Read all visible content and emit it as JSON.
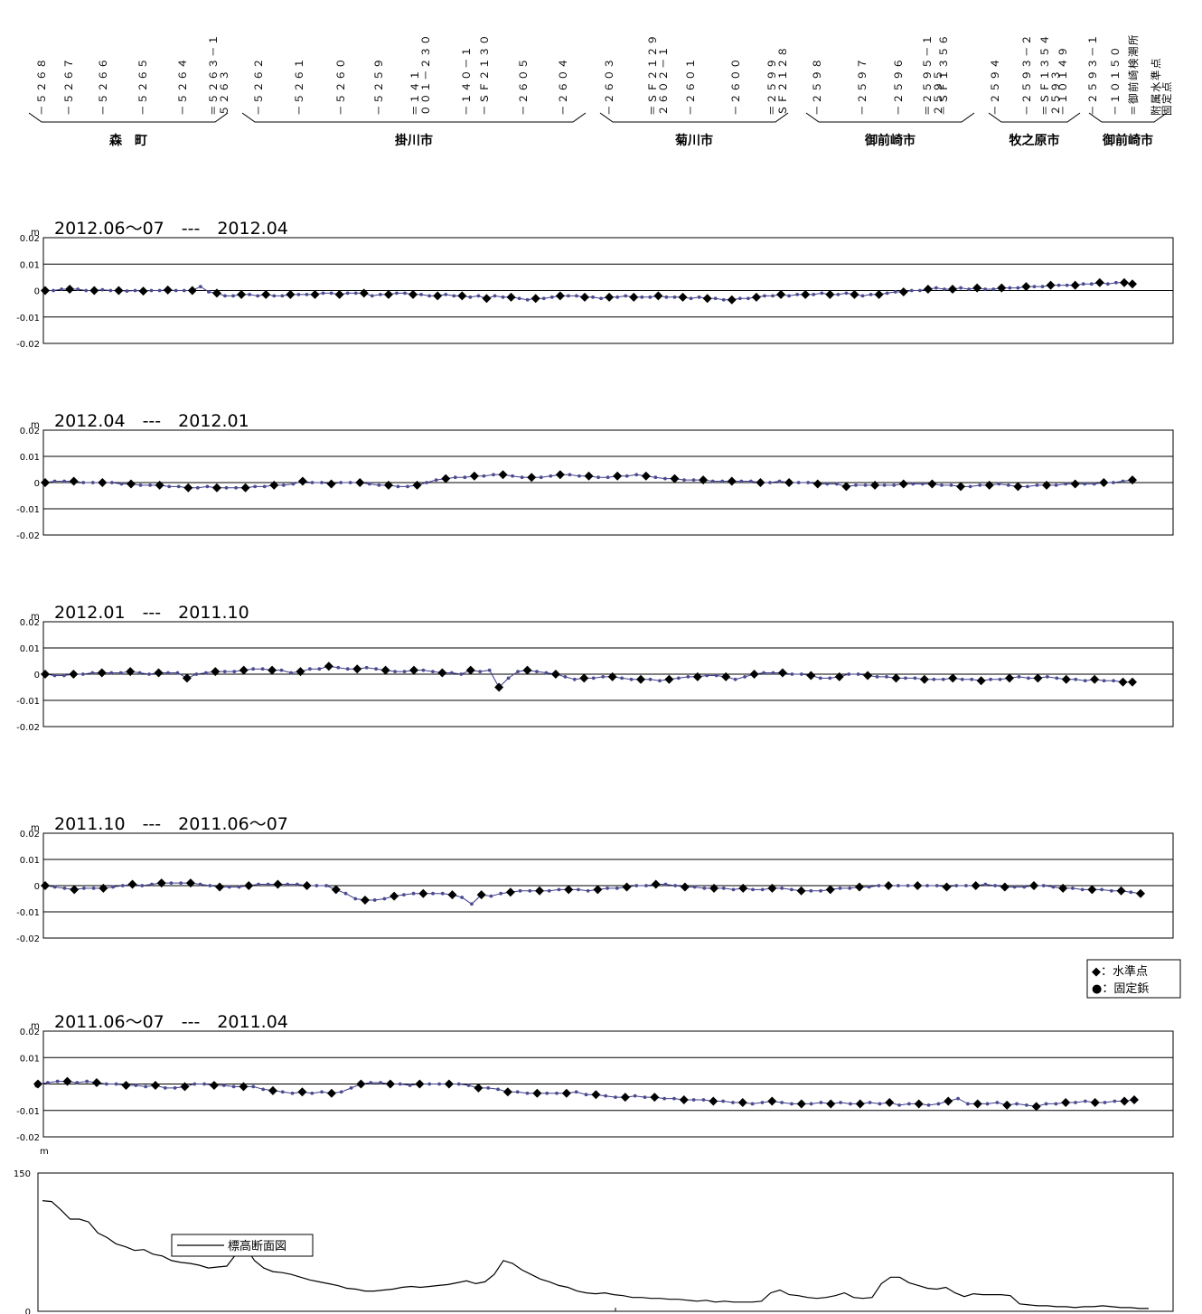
{
  "stations": {
    "labels": [
      [
        "－５２６８"
      ],
      [
        "－５２６７"
      ],
      [
        "－５２６６"
      ],
      [
        "－５２６５"
      ],
      [
        "－５２６４"
      ],
      [
        "＝５２６３－１",
        "５２６３"
      ],
      [
        "－５２６２"
      ],
      [
        "－５２６１"
      ],
      [
        "－５２６０"
      ],
      [
        "－５２５９"
      ],
      [
        "＝１４１",
        "００１－２３０"
      ],
      [
        "－１４０－１"
      ],
      [
        "－ＳＦ２１３０"
      ],
      [
        "－２６０５"
      ],
      [
        "－２６０４"
      ],
      [
        "－２６０３"
      ],
      [
        "＝ＳＦ２１２９",
        "２６０２－１"
      ],
      [
        "－２６０１"
      ],
      [
        "－２６００"
      ],
      [
        "＝２５９９",
        "ＳＦ２１２８"
      ],
      [
        "－２５９８"
      ],
      [
        "－２５９７"
      ],
      [
        "－２５９６"
      ],
      [
        "＝２５９５－１",
        "２５９５"
      ],
      [
        "－ＳＦ１３５６"
      ],
      [
        "－２５９４"
      ],
      [
        "－２５９３－２"
      ],
      [
        "＝ＳＦ１３５４",
        "２５９３"
      ],
      [
        "－１０１４９"
      ],
      [
        "－２５９３－１"
      ],
      [
        "－１０１５０"
      ],
      [
        "＝御前崎検潮所"
      ],
      [
        "附属水準点",
        "固定点"
      ]
    ]
  },
  "municipalities": [
    "森　町",
    "掛川市",
    "菊川市",
    "御前崎市",
    "牧之原市",
    "御前崎市"
  ],
  "unit": "m",
  "legend_diff": {
    "benchmark": "◆：水準点",
    "nail": "●：固定鋲"
  },
  "legend_elev": "標高断面図",
  "chart_data": [
    {
      "type": "line",
      "title": "2012.06～07　---　2012.04",
      "ylim": [
        -0.02,
        0.02
      ],
      "yticks": [
        "0.02",
        "0.01",
        "0",
        "-0.01",
        "-0.02"
      ],
      "series": [
        {
          "values": [
            0,
            0,
            0.0005,
            0.0005,
            0.0005,
            0,
            0,
            0.0003,
            0,
            0,
            -0.0002,
            0,
            -0.0002,
            0,
            0,
            0.0002,
            0,
            0,
            0,
            0.0015,
            -0.0005,
            -0.001,
            -0.002,
            -0.002,
            -0.0015,
            -0.0015,
            -0.002,
            -0.0015,
            -0.002,
            -0.002,
            -0.0015,
            -0.0015,
            -0.0015,
            -0.0015,
            -0.001,
            -0.001,
            -0.0015,
            -0.001,
            -0.001,
            -0.001,
            -0.002,
            -0.0015,
            -0.0015,
            -0.001,
            -0.001,
            -0.0015,
            -0.0015,
            -0.002,
            -0.002,
            -0.0015,
            -0.002,
            -0.002,
            -0.0025,
            -0.002,
            -0.003,
            -0.002,
            -0.0025,
            -0.0025,
            -0.003,
            -0.0035,
            -0.003,
            -0.003,
            -0.0025,
            -0.002,
            -0.002,
            -0.002,
            -0.0025,
            -0.0025,
            -0.003,
            -0.0025,
            -0.0025,
            -0.002,
            -0.0025,
            -0.0025,
            -0.0025,
            -0.002,
            -0.0025,
            -0.0025,
            -0.0025,
            -0.003,
            -0.0025,
            -0.003,
            -0.003,
            -0.0035,
            -0.0035,
            -0.003,
            -0.003,
            -0.0025,
            -0.002,
            -0.002,
            -0.0015,
            -0.002,
            -0.0015,
            -0.0015,
            -0.0015,
            -0.001,
            -0.0015,
            -0.0015,
            -0.001,
            -0.0015,
            -0.002,
            -0.0015,
            -0.0015,
            -0.001,
            -0.0005,
            -0.0005,
            0,
            0,
            0.0005,
            0.001,
            0.0005,
            0.0005,
            0.001,
            0.0005,
            0.001,
            0.0005,
            0.0005,
            0.001,
            0.001,
            0.001,
            0.0015,
            0.0015,
            0.0015,
            0.002,
            0.002,
            0.002,
            0.002,
            0.0025,
            0.0025,
            0.003,
            0.0025,
            0.003,
            0.003,
            0.0025
          ]
        }
      ]
    },
    {
      "type": "line",
      "title": "2012.04　---　2012.01",
      "ylim": [
        -0.02,
        0.02
      ],
      "yticks": [
        "0.02",
        "0.01",
        "0",
        "-0.01",
        "-0.02"
      ],
      "series": [
        {
          "values": [
            0,
            0.0005,
            0.0005,
            0.0005,
            0,
            0,
            0,
            0,
            -0.0005,
            -0.0005,
            -0.001,
            -0.001,
            -0.001,
            -0.0015,
            -0.0015,
            -0.002,
            -0.002,
            -0.0015,
            -0.002,
            -0.002,
            -0.002,
            -0.002,
            -0.0015,
            -0.0015,
            -0.001,
            -0.001,
            -0.0005,
            0.0005,
            0,
            0,
            -0.0005,
            0,
            0,
            0,
            -0.0005,
            -0.001,
            -0.001,
            -0.0015,
            -0.0015,
            -0.001,
            0,
            0.001,
            0.0015,
            0.002,
            0.002,
            0.0025,
            0.0025,
            0.003,
            0.003,
            0.0025,
            0.002,
            0.002,
            0.002,
            0.0025,
            0.003,
            0.003,
            0.0025,
            0.0025,
            0.002,
            0.002,
            0.0025,
            0.0025,
            0.003,
            0.0025,
            0.002,
            0.0015,
            0.0015,
            0.001,
            0.001,
            0.001,
            0.0005,
            0.0005,
            0.0005,
            0.0005,
            0.0005,
            0,
            0,
            0.0005,
            0,
            0,
            0,
            -0.0005,
            -0.0005,
            -0.0005,
            -0.0015,
            -0.001,
            -0.001,
            -0.001,
            -0.001,
            -0.001,
            -0.0005,
            -0.0005,
            -0.0005,
            -0.0005,
            -0.001,
            -0.001,
            -0.0015,
            -0.0015,
            -0.001,
            -0.001,
            -0.0005,
            -0.001,
            -0.0015,
            -0.0015,
            -0.001,
            -0.001,
            -0.001,
            -0.0005,
            -0.0005,
            -0.0005,
            -0.0005,
            0,
            0,
            0.0005,
            0.001
          ]
        }
      ]
    },
    {
      "type": "line",
      "title": "2012.01　---　2011.10",
      "ylim": [
        -0.02,
        0.02
      ],
      "yticks": [
        "0.02",
        "0.01",
        "0",
        "-0.01",
        "-0.02"
      ],
      "series": [
        {
          "values": [
            0,
            -0.0005,
            -0.0005,
            0,
            0,
            0.0005,
            0.0005,
            0.0005,
            0.0005,
            0.001,
            0.0005,
            0,
            0.0005,
            0.0005,
            0.0005,
            -0.0015,
            0,
            0.0005,
            0.001,
            0.001,
            0.001,
            0.0015,
            0.002,
            0.002,
            0.0015,
            0.0015,
            0.0005,
            0.001,
            0.002,
            0.002,
            0.003,
            0.0025,
            0.002,
            0.002,
            0.0025,
            0.002,
            0.0015,
            0.001,
            0.001,
            0.0015,
            0.0015,
            0.001,
            0.0005,
            0.0005,
            0,
            0.0015,
            0.001,
            0.0015,
            -0.005,
            -0.0015,
            0.001,
            0.0015,
            0.001,
            0.0005,
            0,
            -0.001,
            -0.002,
            -0.0015,
            -0.0015,
            -0.001,
            -0.001,
            -0.0015,
            -0.002,
            -0.002,
            -0.002,
            -0.0025,
            -0.002,
            -0.0015,
            -0.001,
            -0.001,
            -0.0005,
            -0.0005,
            -0.001,
            -0.002,
            -0.001,
            0,
            0.0005,
            0.0005,
            0.0005,
            0,
            0,
            -0.0005,
            -0.0015,
            -0.0015,
            -0.001,
            0,
            0,
            -0.0005,
            -0.001,
            -0.001,
            -0.0015,
            -0.0015,
            -0.0015,
            -0.002,
            -0.002,
            -0.002,
            -0.0015,
            -0.002,
            -0.002,
            -0.0025,
            -0.002,
            -0.002,
            -0.0015,
            -0.001,
            -0.0015,
            -0.0015,
            -0.001,
            -0.0015,
            -0.002,
            -0.002,
            -0.0025,
            -0.002,
            -0.0025,
            -0.0025,
            -0.003,
            -0.003
          ]
        }
      ]
    },
    {
      "type": "line",
      "title": "2011.10　---　2011.06～07",
      "ylim": [
        -0.02,
        0.02
      ],
      "yticks": [
        "0.02",
        "0.01",
        "0",
        "-0.01",
        "-0.02"
      ],
      "series": [
        {
          "values": [
            0,
            -0.0005,
            -0.001,
            -0.0015,
            -0.001,
            -0.001,
            -0.001,
            -0.0005,
            0,
            0.0005,
            0,
            0.0005,
            0.001,
            0.001,
            0.001,
            0.001,
            0.0005,
            0,
            -0.0005,
            -0.0005,
            -0.0005,
            0,
            0.0005,
            0.0005,
            0.0005,
            0.0005,
            0.0005,
            0,
            0,
            0,
            -0.0015,
            -0.003,
            -0.005,
            -0.0055,
            -0.0055,
            -0.005,
            -0.004,
            -0.0035,
            -0.003,
            -0.003,
            -0.003,
            -0.003,
            -0.0035,
            -0.0045,
            -0.007,
            -0.0035,
            -0.004,
            -0.003,
            -0.0025,
            -0.002,
            -0.002,
            -0.002,
            -0.002,
            -0.0015,
            -0.0015,
            -0.0015,
            -0.002,
            -0.0015,
            -0.001,
            -0.001,
            -0.0005,
            0,
            0,
            0.0005,
            0.0005,
            0,
            -0.0005,
            -0.0005,
            -0.001,
            -0.001,
            -0.001,
            -0.0015,
            -0.001,
            -0.0015,
            -0.0015,
            -0.001,
            -0.001,
            -0.0015,
            -0.002,
            -0.002,
            -0.002,
            -0.0015,
            -0.001,
            -0.001,
            -0.0005,
            -0.0005,
            0,
            0,
            0,
            0,
            0,
            0,
            0,
            -0.0005,
            0,
            0,
            0,
            0.0005,
            0,
            -0.0005,
            -0.0005,
            -0.0005,
            0,
            0,
            -0.0005,
            -0.001,
            -0.001,
            -0.0015,
            -0.0015,
            -0.0015,
            -0.002,
            -0.002,
            -0.0025,
            -0.003
          ]
        }
      ]
    },
    {
      "type": "line",
      "title": "2011.06～07　---　2011.04",
      "ylim": [
        -0.02,
        0.02
      ],
      "yticks": [
        "0.02",
        "0.01",
        "0",
        "-0.01",
        "-0.02"
      ],
      "series": [
        {
          "values": [
            0,
            0.0005,
            0.001,
            0.001,
            0.0005,
            0.001,
            0.0005,
            0,
            0,
            -0.0005,
            -0.0005,
            -0.001,
            -0.0005,
            -0.0015,
            -0.0015,
            -0.001,
            0,
            0,
            -0.0005,
            -0.0005,
            -0.001,
            -0.001,
            -0.001,
            -0.002,
            -0.0025,
            -0.003,
            -0.0035,
            -0.003,
            -0.0035,
            -0.003,
            -0.0035,
            -0.003,
            -0.0015,
            0,
            0.0005,
            0.0005,
            0,
            0,
            -0.0005,
            0,
            0,
            0,
            0,
            0,
            -0.0005,
            -0.0015,
            -0.0015,
            -0.002,
            -0.003,
            -0.003,
            -0.0035,
            -0.0035,
            -0.0035,
            -0.0035,
            -0.0035,
            -0.003,
            -0.004,
            -0.004,
            -0.0045,
            -0.005,
            -0.005,
            -0.0045,
            -0.005,
            -0.005,
            -0.0055,
            -0.0055,
            -0.006,
            -0.006,
            -0.006,
            -0.0065,
            -0.0065,
            -0.007,
            -0.007,
            -0.0075,
            -0.007,
            -0.0065,
            -0.007,
            -0.0075,
            -0.0075,
            -0.0075,
            -0.007,
            -0.0075,
            -0.007,
            -0.0075,
            -0.0075,
            -0.007,
            -0.0075,
            -0.007,
            -0.008,
            -0.0075,
            -0.0075,
            -0.008,
            -0.0075,
            -0.0065,
            -0.0055,
            -0.0075,
            -0.0075,
            -0.0075,
            -0.007,
            -0.008,
            -0.0075,
            -0.008,
            -0.0085,
            -0.0075,
            -0.0075,
            -0.007,
            -0.007,
            -0.0065,
            -0.007,
            -0.007,
            -0.0065,
            -0.0065,
            -0.006
          ]
        }
      ]
    },
    {
      "type": "line",
      "title": "",
      "ylim": [
        0,
        150
      ],
      "yticks": [
        "150",
        "0"
      ],
      "series": [
        {
          "name": "標高断面図",
          "values": [
            120,
            119,
            110,
            100,
            100,
            97,
            85,
            80,
            73,
            70,
            66,
            67,
            62,
            60,
            55,
            53,
            52,
            50,
            47,
            48,
            49,
            62,
            70,
            55,
            47,
            43,
            42,
            40,
            37,
            34,
            32,
            30,
            28,
            25,
            24,
            22,
            22,
            23,
            24,
            26,
            27,
            26,
            27,
            28,
            29,
            31,
            33,
            30,
            32,
            40,
            55,
            52,
            45,
            40,
            35,
            32,
            28,
            26,
            22,
            20,
            19,
            20,
            18,
            17,
            15,
            15,
            14,
            14,
            13,
            13,
            12,
            11,
            12,
            10,
            11,
            10,
            10,
            10,
            11,
            20,
            23,
            18,
            17,
            15,
            14,
            15,
            17,
            20,
            15,
            14,
            15,
            30,
            37,
            37,
            31,
            28,
            25,
            24,
            26,
            20,
            16,
            19,
            18,
            18,
            18,
            17,
            8,
            7,
            6,
            6,
            5,
            5,
            4,
            5,
            5,
            6,
            5,
            4,
            4,
            3,
            3
          ]
        }
      ]
    }
  ]
}
